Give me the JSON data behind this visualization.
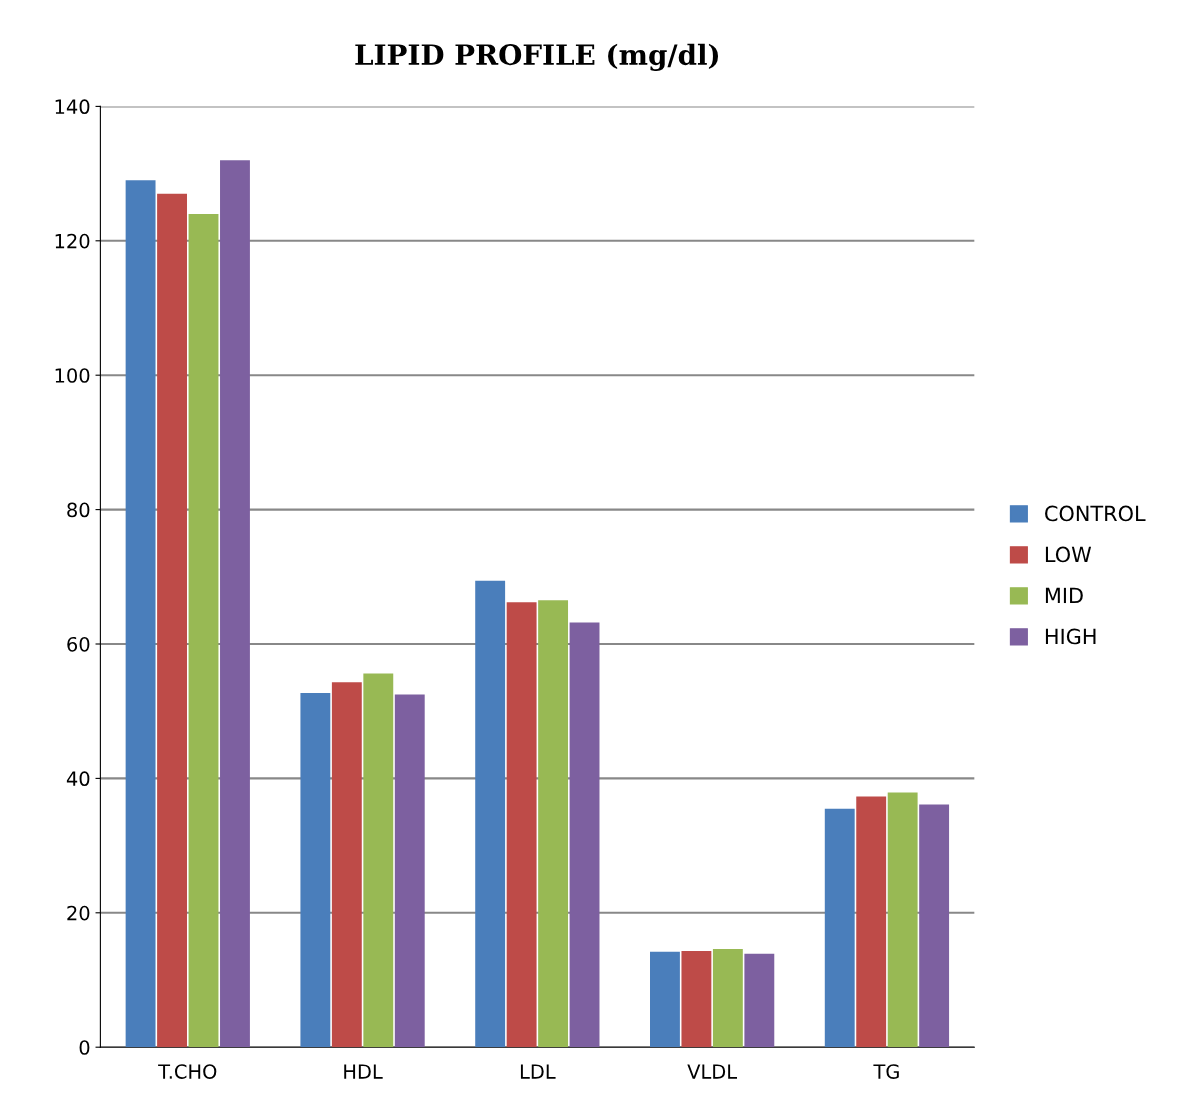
{
  "chart_data": {
    "type": "bar",
    "title": "LIPID PROFILE (mg/dl)",
    "categories": [
      "T.CHO",
      "HDL",
      "LDL",
      "VLDL",
      "TG"
    ],
    "series": [
      {
        "name": "CONTROL",
        "color": "#4a7ebb",
        "values": [
          129,
          52.7,
          69.4,
          14.2,
          35.5
        ]
      },
      {
        "name": "LOW",
        "color": "#be4b48",
        "values": [
          127,
          54.3,
          66.2,
          14.3,
          37.3
        ]
      },
      {
        "name": "MID",
        "color": "#98b954",
        "values": [
          124,
          55.6,
          66.5,
          14.6,
          37.9
        ]
      },
      {
        "name": "HIGH",
        "color": "#7d60a0",
        "values": [
          132,
          52.5,
          63.2,
          13.9,
          36.1
        ]
      }
    ],
    "ylim": [
      0,
      140
    ],
    "yticks": [
      0,
      20,
      40,
      60,
      80,
      100,
      120,
      140
    ],
    "grid": "y",
    "legend": "right"
  }
}
